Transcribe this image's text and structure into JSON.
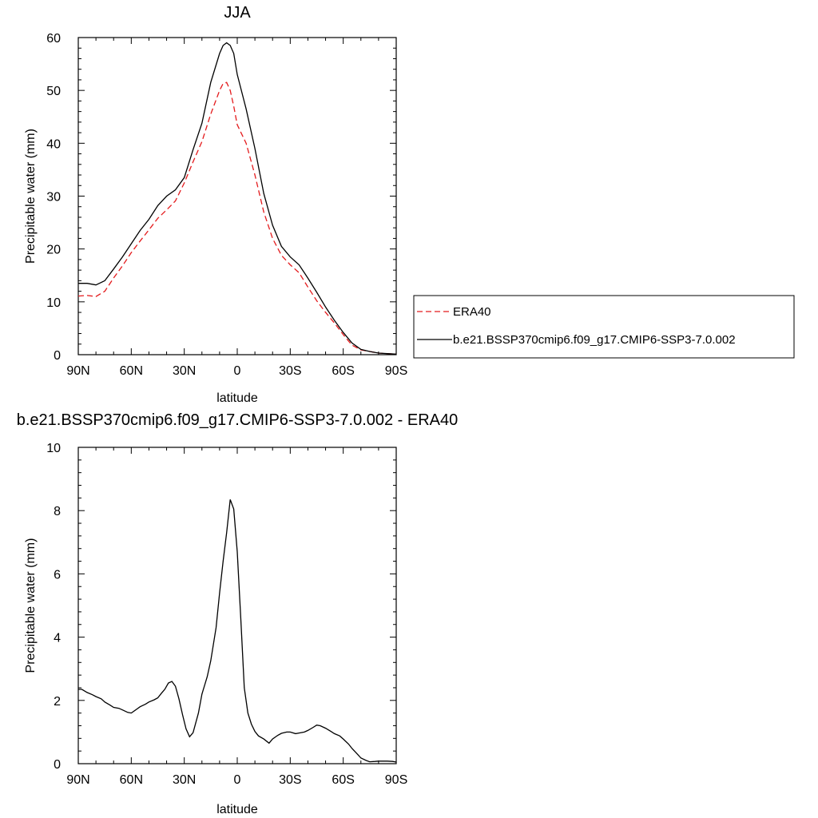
{
  "chart_data": [
    {
      "type": "line",
      "title": "JJA",
      "xlabel": "latitude",
      "ylabel": "Precipitable water (mm)",
      "xlim": [
        90,
        -90
      ],
      "ylim": [
        0,
        60
      ],
      "xticks": [
        90,
        60,
        30,
        0,
        -30,
        -60,
        -90
      ],
      "xtick_labels": [
        "90N",
        "60N",
        "30N",
        "0",
        "30S",
        "60S",
        "90S"
      ],
      "yticks": [
        0,
        10,
        20,
        30,
        40,
        50,
        60
      ],
      "ytick_labels": [
        "0",
        "10",
        "20",
        "30",
        "40",
        "50",
        "60"
      ],
      "legend_position": "right",
      "series": [
        {
          "name": "ERA40",
          "color": "#e41a1c",
          "style": "dashed",
          "x": [
            90,
            85,
            80,
            75,
            70,
            65,
            60,
            55,
            50,
            45,
            40,
            35,
            30,
            25,
            20,
            15,
            10,
            8,
            6,
            4,
            2,
            0,
            -5,
            -10,
            -15,
            -20,
            -25,
            -30,
            -35,
            -40,
            -45,
            -50,
            -55,
            -60,
            -65,
            -70,
            -75,
            -80,
            -85,
            -90
          ],
          "y": [
            11.1,
            11.2,
            11.0,
            12.0,
            14.5,
            16.8,
            19.3,
            21.5,
            23.6,
            25.8,
            27.4,
            29.1,
            32.5,
            36.5,
            40.3,
            45.5,
            50.0,
            51.3,
            51.5,
            50.0,
            47.0,
            43.5,
            40.0,
            34.0,
            27.0,
            22.0,
            18.8,
            17.0,
            15.5,
            12.8,
            10.2,
            8.0,
            6.0,
            3.8,
            1.8,
            0.9,
            0.6,
            0.3,
            0.2,
            0.1
          ]
        },
        {
          "name": "b.e21.BSSP370cmip6.f09_g17.CMIP6-SSP3-7.0.002",
          "color": "#000000",
          "style": "solid",
          "x": [
            90,
            85,
            80,
            75,
            70,
            65,
            60,
            55,
            50,
            45,
            40,
            35,
            30,
            25,
            20,
            15,
            10,
            8,
            6,
            4,
            2,
            0,
            -5,
            -10,
            -15,
            -20,
            -25,
            -30,
            -35,
            -40,
            -45,
            -50,
            -55,
            -60,
            -65,
            -70,
            -75,
            -80,
            -85,
            -90
          ],
          "y": [
            13.5,
            13.5,
            13.2,
            14.0,
            16.2,
            18.5,
            21.0,
            23.5,
            25.6,
            28.2,
            30.0,
            31.2,
            33.5,
            38.8,
            43.8,
            51.5,
            57.0,
            58.5,
            59.0,
            58.5,
            57.0,
            53.0,
            46.5,
            39.0,
            30.5,
            24.5,
            20.5,
            18.5,
            17.0,
            14.5,
            11.8,
            9.0,
            6.5,
            4.2,
            2.2,
            1.0,
            0.6,
            0.3,
            0.2,
            0.1
          ]
        }
      ]
    },
    {
      "type": "line",
      "title": "b.e21.BSSP370cmip6.f09_g17.CMIP6-SSP3-7.0.002 - ERA40",
      "xlabel": "latitude",
      "ylabel": "Precipitable water (mm)",
      "xlim": [
        90,
        -90
      ],
      "ylim": [
        0,
        10
      ],
      "xticks": [
        90,
        60,
        30,
        0,
        -30,
        -60,
        -90
      ],
      "xtick_labels": [
        "90N",
        "60N",
        "30N",
        "0",
        "30S",
        "60S",
        "90S"
      ],
      "yticks": [
        0,
        2,
        4,
        6,
        8,
        10
      ],
      "ytick_labels": [
        "0",
        "2",
        "4",
        "6",
        "8",
        "10"
      ],
      "series": [
        {
          "color": "#000000",
          "style": "solid",
          "x": [
            90,
            88,
            85,
            82,
            80,
            77,
            75,
            72,
            70,
            67,
            65,
            62,
            60,
            57,
            55,
            52,
            50,
            47,
            45,
            43,
            41,
            39,
            37,
            35,
            33,
            31,
            29,
            27,
            25,
            22,
            20,
            17,
            15,
            12,
            10,
            8,
            6,
            4,
            2,
            0,
            -2,
            -4,
            -6,
            -8,
            -10,
            -12,
            -15,
            -18,
            -20,
            -23,
            -25,
            -28,
            -30,
            -33,
            -35,
            -38,
            -40,
            -43,
            -45,
            -47,
            -50,
            -53,
            -55,
            -58,
            -60,
            -63,
            -65,
            -68,
            -70,
            -73,
            -75,
            -78,
            -80,
            -83,
            -85,
            -88,
            -90
          ],
          "y": [
            2.35,
            2.35,
            2.25,
            2.18,
            2.12,
            2.05,
            1.95,
            1.85,
            1.78,
            1.75,
            1.7,
            1.62,
            1.6,
            1.72,
            1.8,
            1.88,
            1.95,
            2.02,
            2.08,
            2.22,
            2.35,
            2.55,
            2.6,
            2.45,
            2.05,
            1.55,
            1.1,
            0.85,
            0.98,
            1.6,
            2.2,
            2.75,
            3.25,
            4.3,
            5.4,
            6.4,
            7.3,
            8.35,
            8.05,
            6.7,
            4.6,
            2.4,
            1.6,
            1.25,
            1.02,
            0.88,
            0.78,
            0.65,
            0.78,
            0.9,
            0.96,
            1.0,
            1.0,
            0.95,
            0.97,
            1.0,
            1.05,
            1.15,
            1.22,
            1.2,
            1.12,
            1.02,
            0.95,
            0.88,
            0.78,
            0.62,
            0.48,
            0.3,
            0.18,
            0.1,
            0.06,
            0.07,
            0.08,
            0.08,
            0.08,
            0.07,
            0.05
          ]
        }
      ]
    }
  ]
}
